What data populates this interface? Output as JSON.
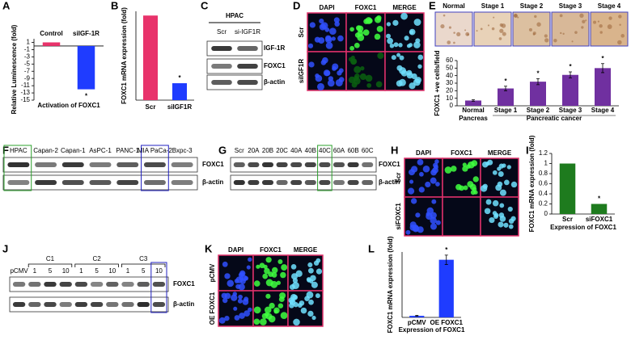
{
  "panel_letters": [
    "A",
    "B",
    "C",
    "D",
    "E",
    "F",
    "G",
    "H",
    "I",
    "J",
    "K",
    "L"
  ],
  "blot_C": {
    "title": "HPAC",
    "lanes": [
      "Scr",
      "si-IGF1R"
    ],
    "bands": [
      "IGF-1R",
      "FOXC1",
      "β-actin"
    ]
  },
  "images_D": {
    "channels": [
      "DAPI",
      "FOXC1",
      "MERGE"
    ],
    "rows": [
      "Scr",
      "siIGF1R"
    ]
  },
  "images_E": [
    "Normal",
    "Stage 1",
    "Stage 2",
    "Stage 3",
    "Stage 4"
  ],
  "blot_F": {
    "lanes": [
      "HPAC",
      "Capan-2",
      "Capan-1",
      "AsPC-1",
      "PANC-1",
      "MIA PaCa-2",
      "Bxpc-3"
    ],
    "bands": [
      "FOXC1",
      "β-actin"
    ]
  },
  "blot_G": {
    "lanes": [
      "Scr",
      "20A",
      "20B",
      "20C",
      "40A",
      "40B",
      "40C",
      "60A",
      "60B",
      "60C"
    ],
    "bands": [
      "FOXC1",
      "β-actin"
    ]
  },
  "images_H": {
    "channels": [
      "DAPI",
      "FOXC1",
      "MERGE"
    ],
    "rows": [
      "Scr",
      "siFOXC1"
    ]
  },
  "blot_J": {
    "groups": [
      "C1",
      "C2",
      "C3"
    ],
    "lanes": [
      "pCMV",
      "1",
      "5",
      "10",
      "1",
      "5",
      "10",
      "1",
      "5",
      "10"
    ],
    "bands": [
      "FOXC1",
      "β-actin"
    ]
  },
  "images_K": {
    "channels": [
      "DAPI",
      "FOXC1",
      "MERGE"
    ],
    "rows": [
      "pCMV",
      "OE FOXC1"
    ]
  },
  "chart_data": [
    {
      "type": "bar",
      "categories": [
        "Control",
        "siIGF-1R"
      ],
      "values": [
        1,
        -12
      ],
      "colors": [
        "#e8336b",
        "#1f3cff"
      ],
      "ylim": [
        -15,
        2
      ],
      "yticks": [
        1,
        -1,
        -3,
        -5,
        -7,
        -9,
        -11,
        -13,
        -15
      ],
      "ylabel": "Relative Luminescence (fold)",
      "xlabel": "Activation of FOXC1",
      "annotations": [
        null,
        "*"
      ]
    },
    {
      "type": "bar",
      "categories": [
        "Scr",
        "siIGF1R"
      ],
      "values": [
        1,
        0.2
      ],
      "colors": [
        "#e8336b",
        "#1f3cff"
      ],
      "ylim": [
        0,
        1.05
      ],
      "ylabel": "FOXC1 mRNA expression (fold)",
      "annotations": [
        null,
        "*"
      ]
    },
    {
      "type": "bar",
      "categories": [
        "Normal",
        "Stage 1",
        "Stage 2",
        "Stage 3",
        "Stage 4"
      ],
      "values": [
        7,
        23,
        32,
        41,
        50
      ],
      "errors": [
        1,
        3,
        4,
        4,
        6
      ],
      "colors": [
        "#7030a0",
        "#7030a0",
        "#7030a0",
        "#7030a0",
        "#7030a0"
      ],
      "ylim": [
        0,
        60
      ],
      "yticks": [
        0,
        10,
        20,
        30,
        40,
        50,
        60
      ],
      "ylabel": "FOXC1 +ve cells/field",
      "groups": [
        "Pancreas",
        "Pancreatic cancer"
      ],
      "annotations": [
        null,
        "*",
        "*",
        "*",
        "*"
      ]
    },
    {
      "type": "bar",
      "categories": [
        "Scr",
        "siFOXC1"
      ],
      "values": [
        1,
        0.2
      ],
      "colors": [
        "#1e7b1e",
        "#1e7b1e"
      ],
      "ylim": [
        0,
        1.2
      ],
      "yticks": [
        0,
        0.2,
        0.4,
        0.6,
        0.8,
        1,
        1.2
      ],
      "ylabel": "FOXC1 mRNA expression (fold)",
      "xlabel": "Expression of FOXC1",
      "annotations": [
        null,
        "*"
      ]
    },
    {
      "type": "bar",
      "categories": [
        "pCMV",
        "OE FOXC1"
      ],
      "values": [
        1,
        37
      ],
      "errors": [
        0.3,
        3
      ],
      "colors": [
        "#1f3cff",
        "#1f3cff"
      ],
      "ylim": [
        0,
        42
      ],
      "ylabel": "FOXC1 mRNA expression (fold)",
      "xlabel": "Expression of FOXC1",
      "annotations": [
        null,
        "*"
      ]
    }
  ]
}
